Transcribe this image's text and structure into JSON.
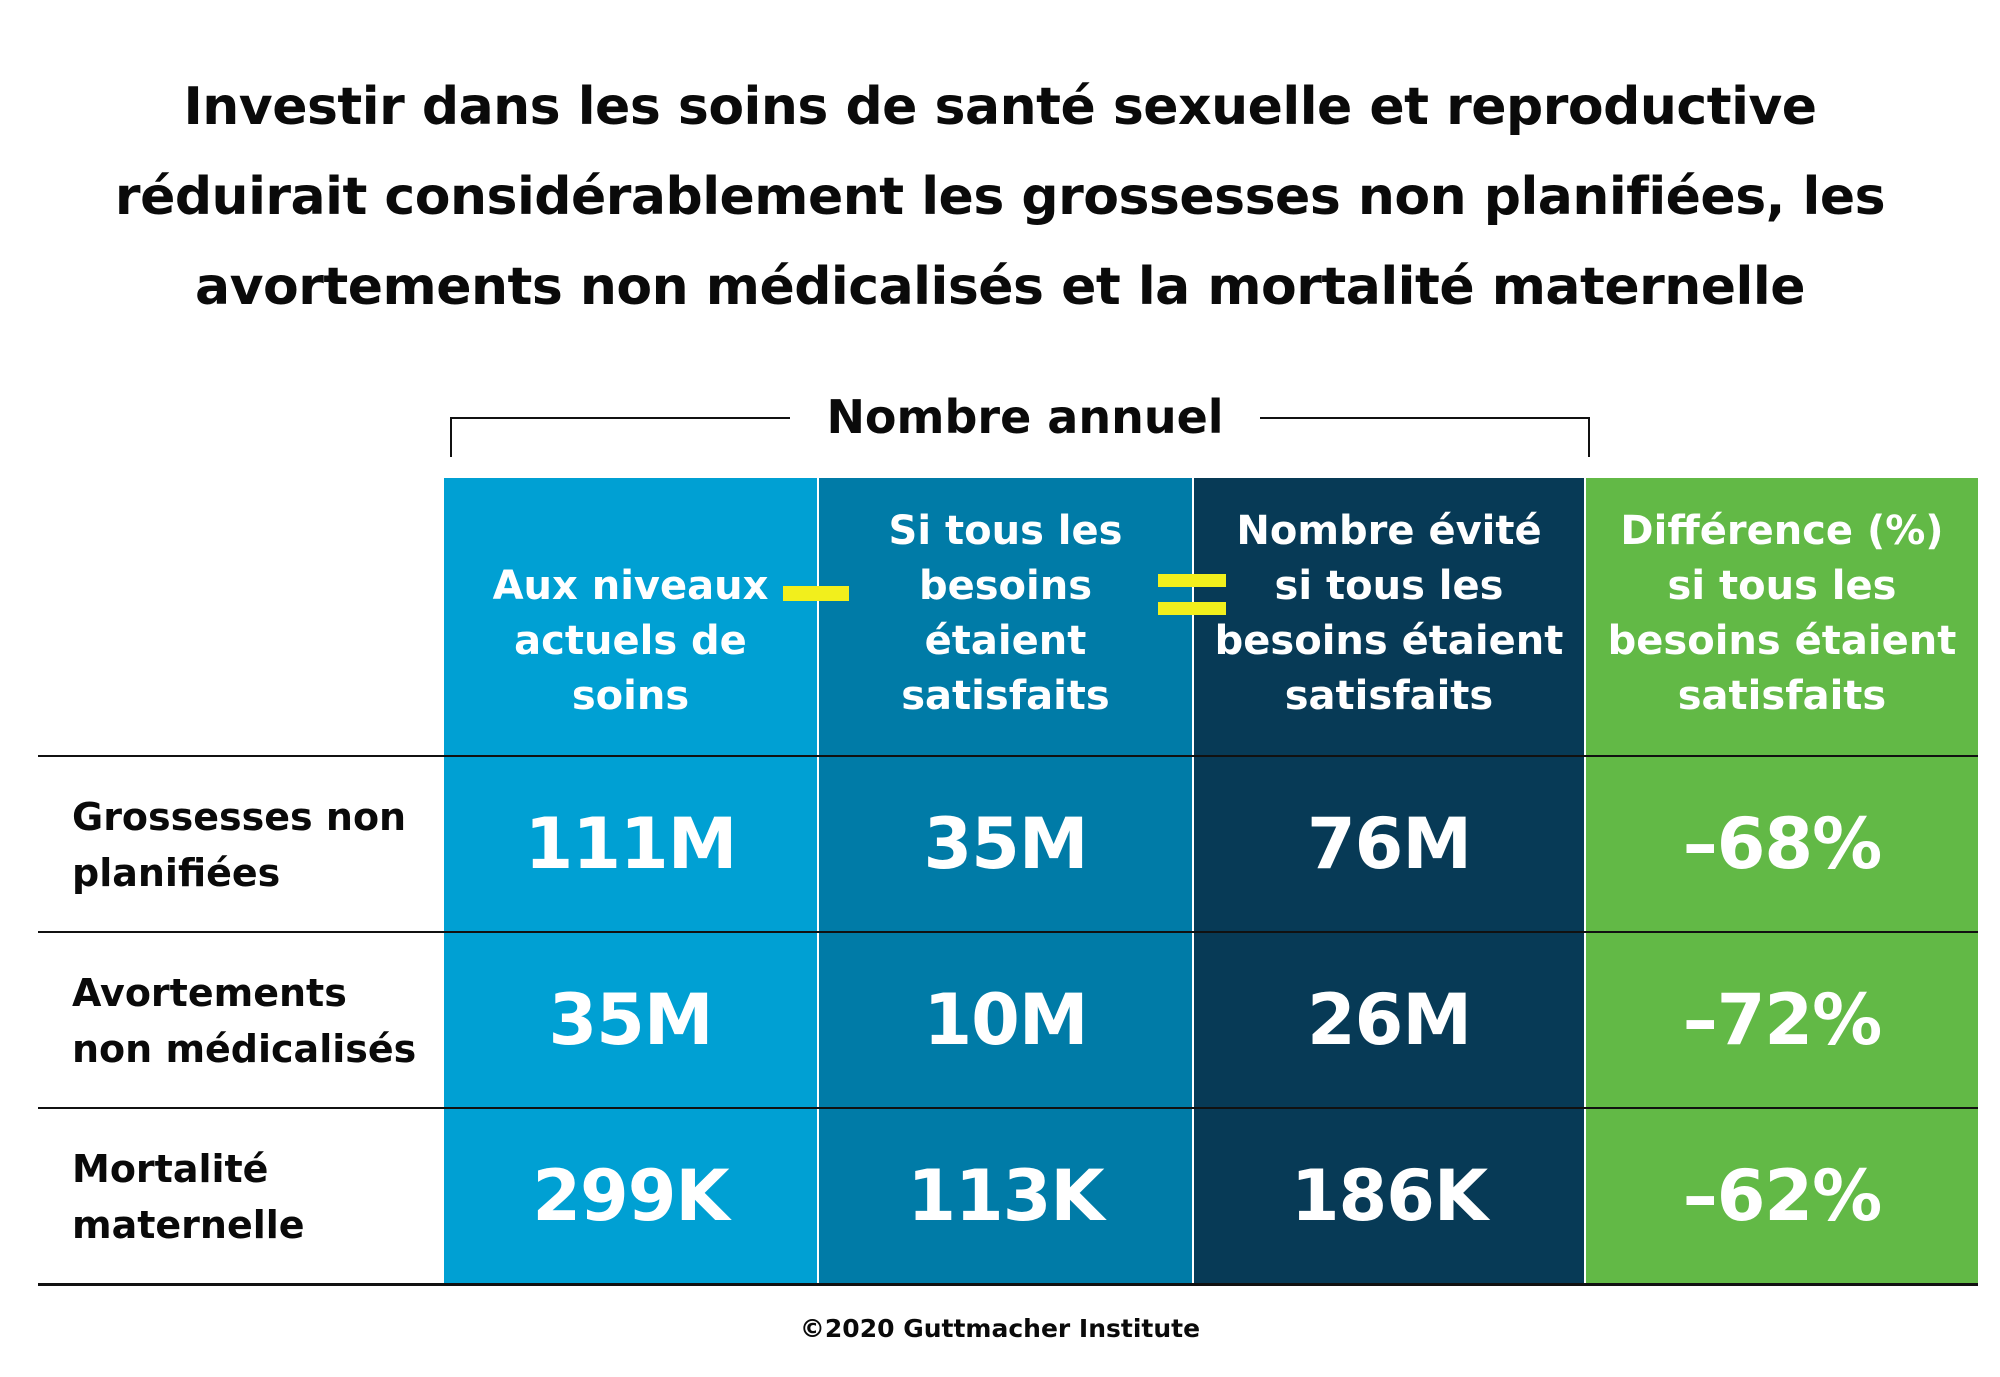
{
  "title_lines": [
    "Investir dans les soins de santé sexuelle et reproductive",
    "réduirait considérablement les grossesses non planifiées, les",
    "avortements non médicalisés et la mortalité maternelle"
  ],
  "bracket_label": "Nombre annuel",
  "operators": {
    "minus": "−",
    "equals": "="
  },
  "footer": "©2020 Guttmacher Institute",
  "colors": {
    "current_levels": "#00a0d3",
    "needs_met": "#007ba7",
    "averted": "#073a56",
    "difference": "#62b946",
    "operator": "#f2ef1c"
  },
  "chart_data": {
    "type": "table",
    "title": "Investir dans les soins de santé sexuelle et reproductive réduirait considérablement les grossesses non planifiées, les avortements non médicalisés et la mortalité maternelle",
    "group_label": "Nombre annuel",
    "columns": [
      {
        "lines": [
          "Aux niveaux",
          "actuels de",
          "soins"
        ]
      },
      {
        "lines": [
          "Si tous les",
          "besoins",
          "étaient",
          "satisfaits"
        ]
      },
      {
        "lines": [
          "Nombre évité",
          "si tous les",
          "besoins étaient",
          "satisfaits"
        ]
      },
      {
        "lines": [
          "Différence (%)",
          "si tous les",
          "besoins étaient",
          "satisfaits"
        ]
      }
    ],
    "rows": [
      {
        "label_lines": [
          "Grossesses non",
          "planifiées"
        ],
        "values": [
          "111M",
          "35M",
          "76M",
          "–68%"
        ]
      },
      {
        "label_lines": [
          "Avortements",
          "non médicalisés"
        ],
        "values": [
          "35M",
          "10M",
          "26M",
          "–72%"
        ]
      },
      {
        "label_lines": [
          "Mortalité",
          "maternelle"
        ],
        "values": [
          "299K",
          "113K",
          "186K",
          "–62%"
        ]
      }
    ]
  }
}
